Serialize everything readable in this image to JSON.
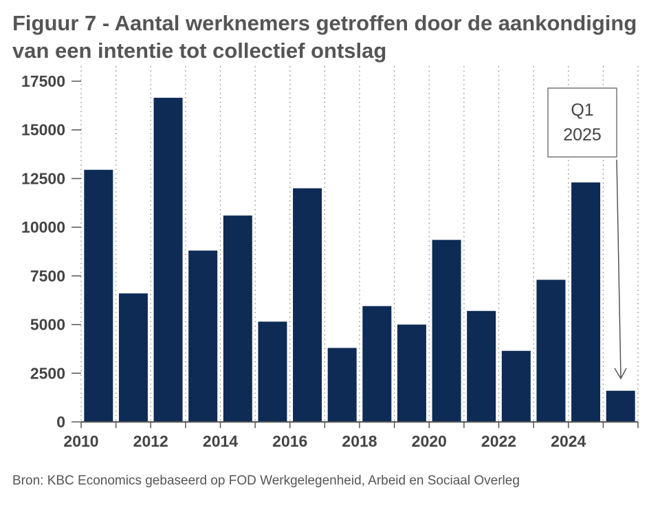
{
  "chart_data": {
    "type": "bar",
    "title": "Figuur 7 - Aantal werknemers getroffen door de aankondiging van een intentie tot collectief ontslag",
    "xlabel": "",
    "ylabel": "",
    "categories": [
      "2010",
      "2011",
      "2012",
      "2013",
      "2014",
      "2015",
      "2016",
      "2017",
      "2018",
      "2019",
      "2020",
      "2021",
      "2022",
      "2023",
      "2024",
      "2025"
    ],
    "values": [
      12950,
      6600,
      16650,
      8800,
      10600,
      5150,
      12000,
      3800,
      5950,
      5000,
      9350,
      5700,
      3650,
      7300,
      12300,
      1600
    ],
    "ylim": [
      0,
      17500
    ],
    "yticks": [
      "0",
      "2500",
      "5000",
      "7500",
      "10000",
      "12500",
      "15000",
      "17500"
    ],
    "xtick_labels": [
      "2010",
      "2012",
      "2014",
      "2016",
      "2018",
      "2020",
      "2022",
      "2024"
    ],
    "bar_color": "#0d2b55",
    "grid": "vertical dotted",
    "annotation": {
      "line1": "Q1",
      "line2": "2025",
      "target": "2025"
    },
    "source": "Bron: KBC Economics gebaseerd op FOD Werkgelegenheid, Arbeid en Sociaal Overleg"
  }
}
